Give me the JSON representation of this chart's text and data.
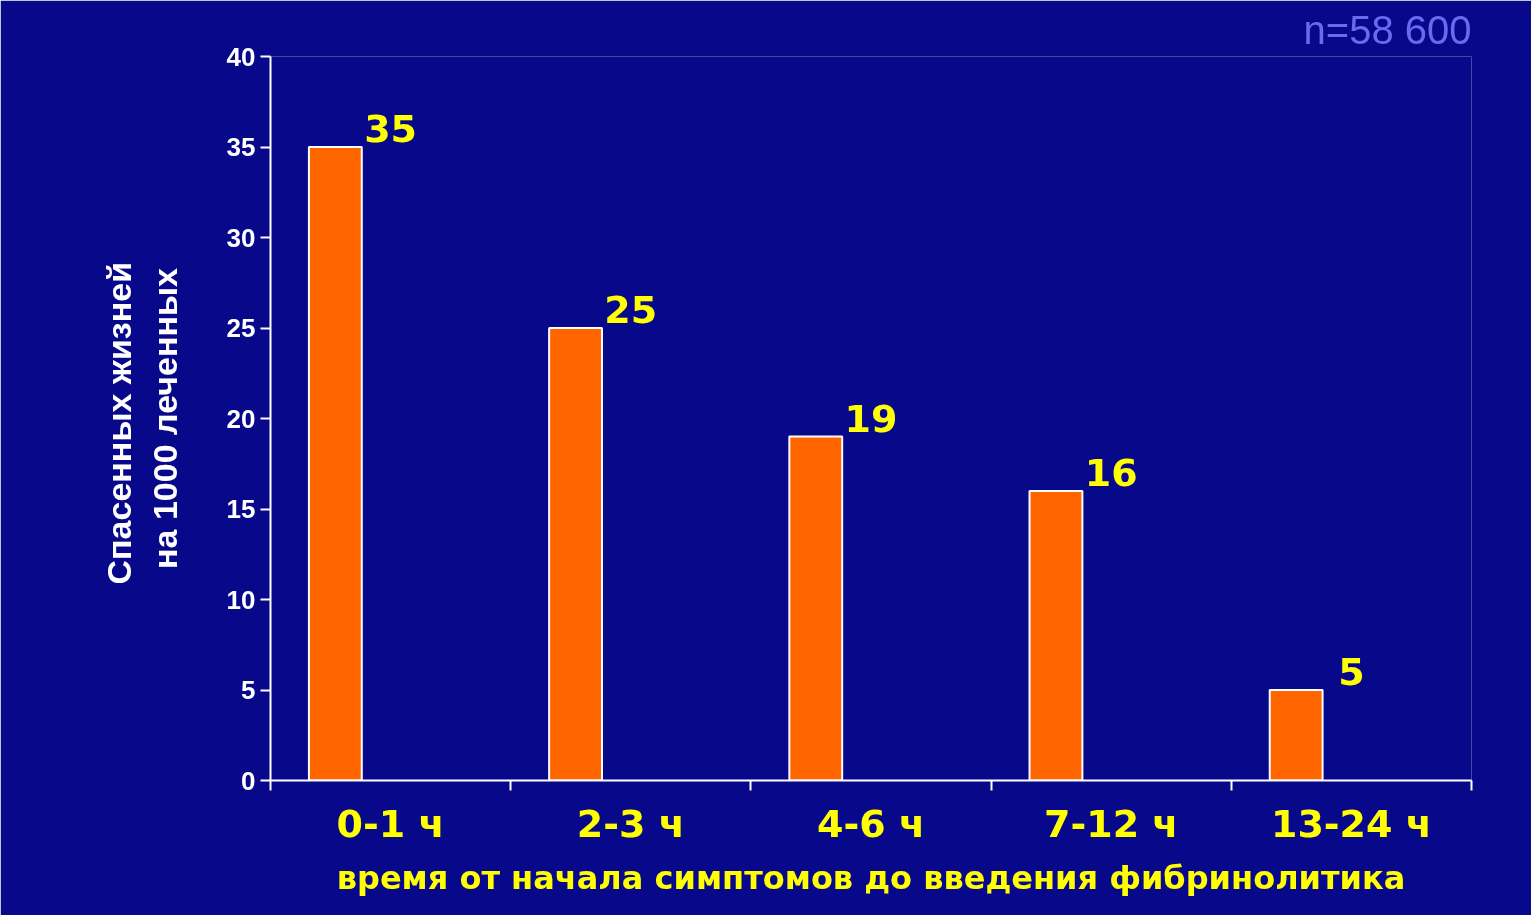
{
  "chart_data": {
    "type": "bar",
    "categories": [
      "0-1 ч",
      "2-3 ч",
      "4-6 ч",
      "7-12 ч",
      "13-24 ч"
    ],
    "values": [
      35,
      25,
      19,
      16,
      5
    ],
    "color": "#ff6600",
    "data_labels": true,
    "xlabel": "время от начала симптомов до введения фибринолитика",
    "ylabel": "Спасенных  жизней\nна 1000 леченных",
    "ylim": [
      0,
      40
    ],
    "yticks": [
      0,
      5,
      10,
      15,
      20,
      25,
      30,
      35,
      40
    ],
    "grid": false,
    "annotations": [
      "n=58 600"
    ]
  }
}
